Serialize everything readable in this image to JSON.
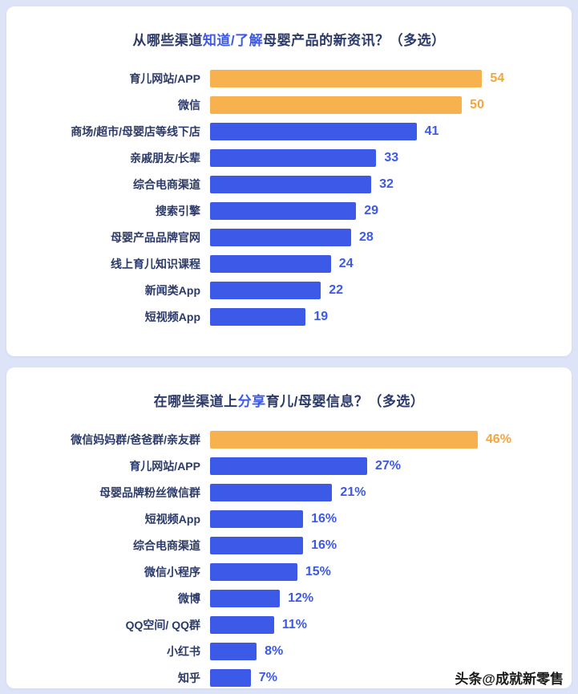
{
  "page": {
    "background": "#dee4f7",
    "watermark": "头条@成就新零售"
  },
  "colors": {
    "bar_blue": "#3c59e8",
    "bar_orange": "#f7b14e",
    "value_blue": "#3c59e8",
    "value_orange": "#f2a640",
    "title": "#2c3a69",
    "label": "#2c3a69"
  },
  "chart_data": [
    {
      "type": "bar",
      "orientation": "horizontal",
      "title": "从哪些渠道知道/了解母婴产品的新资讯？（多选）",
      "title_segments": [
        {
          "text": "从哪些渠道",
          "highlight": false
        },
        {
          "text": "知道/了解",
          "highlight": true
        },
        {
          "text": "母婴产品的新资讯？（多选）",
          "highlight": false
        }
      ],
      "categories": [
        "育儿网站/APP",
        "微信",
        "商场/超市/母婴店等线下店",
        "亲戚朋友/长辈",
        "综合电商渠道",
        "搜索引擎",
        "母婴产品品牌官网",
        "线上育儿知识课程",
        "新闻类App",
        "短视频App"
      ],
      "values": [
        54,
        50,
        41,
        33,
        32,
        29,
        28,
        24,
        22,
        19
      ],
      "value_suffix": "",
      "highlight_indices": [
        0,
        1
      ],
      "axis_max": 67,
      "xlabel": "",
      "ylabel": "",
      "grid": false,
      "legend": "none"
    },
    {
      "type": "bar",
      "orientation": "horizontal",
      "title": "在哪些渠道上分享育儿/母婴信息？（多选）",
      "title_segments": [
        {
          "text": "在哪些渠道上",
          "highlight": false
        },
        {
          "text": "分享",
          "highlight": true
        },
        {
          "text": "育儿/母婴信息？（多选）",
          "highlight": false
        }
      ],
      "categories": [
        "微信妈妈群/爸爸群/亲友群",
        "育儿网站/APP",
        "母婴品牌粉丝微信群",
        "短视频App",
        "综合电商渠道",
        "微信小程序",
        "微博",
        "QQ空间/ QQ群",
        "小红书",
        "知乎"
      ],
      "values": [
        46,
        27,
        21,
        16,
        16,
        15,
        12,
        11,
        8,
        7
      ],
      "value_suffix": "%",
      "highlight_indices": [
        0
      ],
      "axis_max": 58,
      "xlabel": "",
      "ylabel": "",
      "grid": false,
      "legend": "none"
    }
  ]
}
